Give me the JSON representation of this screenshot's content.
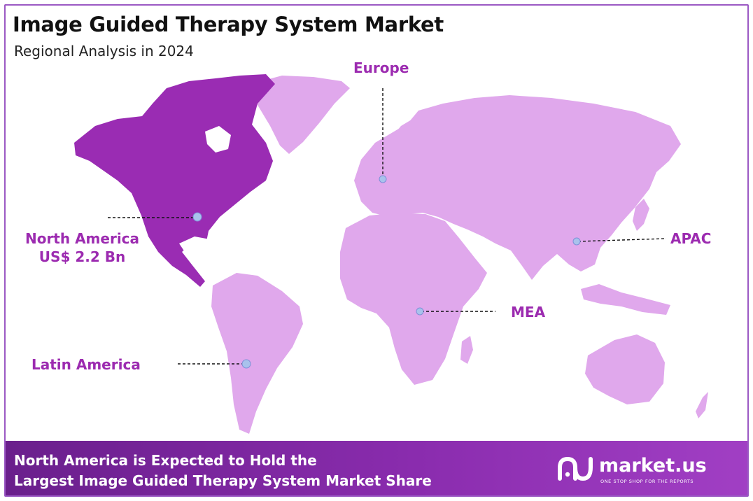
{
  "header": {
    "title": "Image Guided Therapy System Market",
    "subtitle": "Regional Analysis in 2024"
  },
  "colors": {
    "highlight_region": "#9a2cb3",
    "other_regions": "#e0a8ec",
    "label_text": "#9c2bb0",
    "marker": "#a9c2ec",
    "footer_bg": "#8a2cae"
  },
  "regions": {
    "europe": {
      "label": "Europe"
    },
    "north_america": {
      "label": "North America",
      "value": "US$ 2.2 Bn",
      "highlighted": true
    },
    "apac": {
      "label": "APAC"
    },
    "mea": {
      "label": "MEA"
    },
    "latin_america": {
      "label": "Latin America"
    }
  },
  "footer": {
    "line1": "North America is Expected to Hold the",
    "line2": "Largest Image Guided Therapy System Market Share",
    "brand_name": "market.us",
    "brand_tagline": "ONE STOP SHOP FOR THE REPORTS"
  }
}
